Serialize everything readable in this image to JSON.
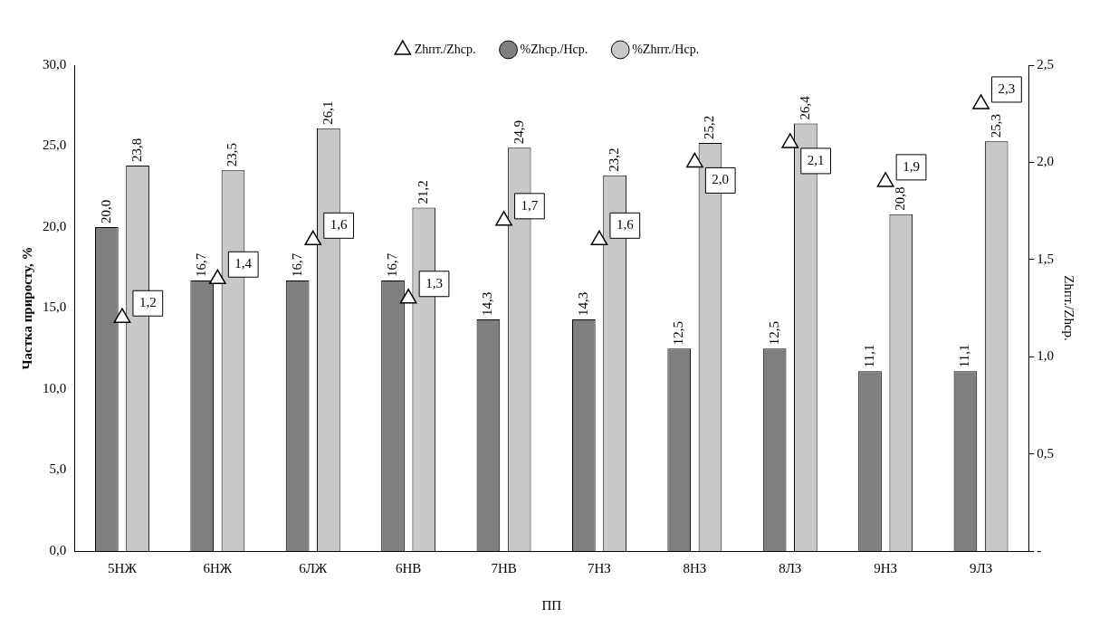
{
  "chart_data": {
    "type": "bar",
    "xlabel": "ПП",
    "ylabel": "Частка приросту, %",
    "y2label": "Zhпт./Zhcp.",
    "categories": [
      "5НЖ",
      "6НЖ",
      "6ЛЖ",
      "6НВ",
      "7НВ",
      "7НЗ",
      "8НЗ",
      "8ЛЗ",
      "9НЗ",
      "9ЛЗ"
    ],
    "series": [
      {
        "name": "%Zhcp./Hcp.",
        "color": "#7f7f7f",
        "values": [
          20.0,
          16.7,
          16.7,
          16.7,
          14.3,
          14.3,
          12.5,
          12.5,
          11.1,
          11.1
        ],
        "value_labels": [
          "20,0",
          "16,7",
          "16,7",
          "16,7",
          "14,3",
          "14,3",
          "12,5",
          "12,5",
          "11,1",
          "11,1"
        ]
      },
      {
        "name": "%Zhпт./Hcp.",
        "color": "#c8c8c8",
        "values": [
          23.8,
          23.5,
          26.1,
          21.2,
          24.9,
          23.2,
          25.2,
          26.4,
          20.8,
          25.3
        ],
        "value_labels": [
          "23,8",
          "23,5",
          "26,1",
          "21,2",
          "24,9",
          "23,2",
          "25,2",
          "26,4",
          "20,8",
          "25,3"
        ]
      },
      {
        "name": "Zhпт./Zhcp.",
        "type": "scatter",
        "axis": "y2",
        "marker": "triangle",
        "color": "#ffffff",
        "values": [
          1.2,
          1.4,
          1.6,
          1.3,
          1.7,
          1.6,
          2.0,
          2.1,
          1.9,
          2.3
        ],
        "value_labels": [
          "1,2",
          "1,4",
          "1,6",
          "1,3",
          "1,7",
          "1,6",
          "2,0",
          "2,1",
          "1,9",
          "2,3"
        ]
      }
    ],
    "ylim": [
      0,
      30
    ],
    "yticks": [
      {
        "value": 0,
        "label": "0,0"
      },
      {
        "value": 5,
        "label": "5,0"
      },
      {
        "value": 10,
        "label": "10,0"
      },
      {
        "value": 15,
        "label": "15,0"
      },
      {
        "value": 20,
        "label": "20,0"
      },
      {
        "value": 25,
        "label": "25,0"
      },
      {
        "value": 30,
        "label": "30,0"
      }
    ],
    "y2lim": [
      0,
      2.5
    ],
    "y2ticks": [
      {
        "value": 0,
        "label": "-"
      },
      {
        "value": 0.5,
        "label": "0,5"
      },
      {
        "value": 1,
        "label": "1,0"
      },
      {
        "value": 1.5,
        "label": "1,5"
      },
      {
        "value": 2,
        "label": "2,0"
      },
      {
        "value": 2.5,
        "label": "2,5"
      }
    ],
    "grid": false,
    "legend": "top"
  }
}
